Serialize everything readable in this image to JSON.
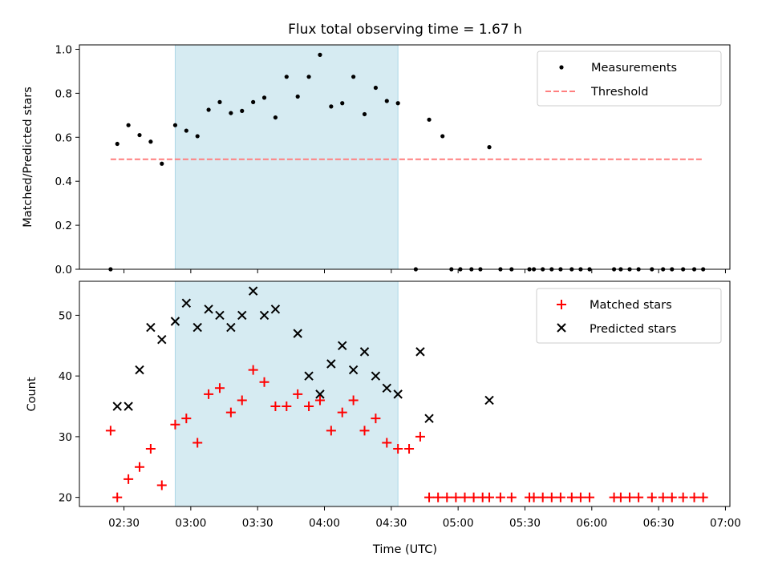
{
  "chart_data": [
    {
      "type": "scatter",
      "title": "Flux total observing time = 1.67 h",
      "xlabel": "",
      "ylabel": "Matched/Predicted stars",
      "xlim": [
        "02:10",
        "07:02"
      ],
      "ylim": [
        0,
        1.02
      ],
      "yticks": [
        0.0,
        0.2,
        0.4,
        0.6,
        0.8,
        1.0
      ],
      "shaded_span": [
        "02:53",
        "04:33"
      ],
      "legend_position": "top-right",
      "colors": {
        "measurements": "#000000",
        "threshold": "#ff7f7f",
        "shade": "#add8e6"
      },
      "series": [
        {
          "name": "Measurements",
          "style": "dot",
          "x": [
            "02:24",
            "02:27",
            "02:32",
            "02:37",
            "02:42",
            "02:47",
            "02:53",
            "02:58",
            "03:03",
            "03:08",
            "03:13",
            "03:18",
            "03:23",
            "03:28",
            "03:33",
            "03:38",
            "03:43",
            "03:48",
            "03:53",
            "03:58",
            "04:03",
            "04:08",
            "04:13",
            "04:18",
            "04:23",
            "04:28",
            "04:33",
            "04:41",
            "04:47",
            "04:53",
            "04:57",
            "05:01",
            "05:06",
            "05:10",
            "05:14",
            "05:19",
            "05:24",
            "05:32",
            "05:34",
            "05:38",
            "05:42",
            "05:46",
            "05:51",
            "05:55",
            "05:59",
            "06:10",
            "06:13",
            "06:17",
            "06:21",
            "06:27",
            "06:32",
            "06:36",
            "06:41",
            "06:46",
            "06:50"
          ],
          "y": [
            0.0,
            0.57,
            0.655,
            0.61,
            0.58,
            0.48,
            0.655,
            0.63,
            0.605,
            0.725,
            0.76,
            0.71,
            0.72,
            0.76,
            0.78,
            0.69,
            0.875,
            0.785,
            0.875,
            0.975,
            0.74,
            0.755,
            0.875,
            0.705,
            0.825,
            0.765,
            0.755,
            0.0,
            0.68,
            0.605,
            0.0,
            0.0,
            0.0,
            0.0,
            0.555,
            0.0,
            0.0,
            0.0,
            0.0,
            0.0,
            0.0,
            0.0,
            0.0,
            0.0,
            0.0,
            0.0,
            0.0,
            0.0,
            0.0,
            0.0,
            0.0,
            0.0,
            0.0,
            0.0,
            0.0
          ]
        },
        {
          "name": "Threshold",
          "style": "dashed-line",
          "x": [
            "02:24",
            "06:50"
          ],
          "y": [
            0.5,
            0.5
          ]
        }
      ]
    },
    {
      "type": "scatter",
      "title": "",
      "xlabel": "Time (UTC)",
      "ylabel": "Count",
      "xlim": [
        "02:10",
        "07:02"
      ],
      "ylim": [
        18.5,
        55.6
      ],
      "yticks": [
        20,
        30,
        40,
        50
      ],
      "xticks": [
        "02:30",
        "03:00",
        "03:30",
        "04:00",
        "04:30",
        "05:00",
        "05:30",
        "06:00",
        "06:30",
        "07:00"
      ],
      "shaded_span": [
        "02:53",
        "04:33"
      ],
      "legend_position": "top-right",
      "colors": {
        "matched": "#ff0000",
        "predicted": "#000000",
        "shade": "#add8e6"
      },
      "series": [
        {
          "name": "Matched stars",
          "marker": "plus",
          "x": [
            "02:24",
            "02:27",
            "02:32",
            "02:37",
            "02:42",
            "02:47",
            "02:53",
            "02:58",
            "03:03",
            "03:08",
            "03:13",
            "03:18",
            "03:23",
            "03:28",
            "03:33",
            "03:38",
            "03:43",
            "03:48",
            "03:53",
            "03:58",
            "04:03",
            "04:08",
            "04:13",
            "04:18",
            "04:23",
            "04:28",
            "04:33",
            "04:38",
            "04:43",
            "04:47",
            "04:51",
            "04:55",
            "04:59",
            "05:03",
            "05:07",
            "05:11",
            "05:14",
            "05:19",
            "05:24",
            "05:32",
            "05:34",
            "05:38",
            "05:42",
            "05:46",
            "05:51",
            "05:55",
            "05:59",
            "06:10",
            "06:13",
            "06:17",
            "06:21",
            "06:27",
            "06:32",
            "06:36",
            "06:41",
            "06:46",
            "06:50"
          ],
          "y": [
            31,
            20,
            23,
            25,
            28,
            22,
            32,
            33,
            29,
            37,
            38,
            34,
            36,
            41,
            39,
            35,
            35,
            37,
            35,
            36,
            31,
            34,
            36,
            31,
            33,
            29,
            28,
            28,
            30,
            20,
            20,
            20,
            20,
            20,
            20,
            20,
            20,
            20,
            20,
            20,
            20,
            20,
            20,
            20,
            20,
            20,
            20,
            20,
            20,
            20,
            20,
            20,
            20,
            20,
            20,
            20,
            20
          ]
        },
        {
          "name": "Predicted stars",
          "marker": "x",
          "x": [
            "02:27",
            "02:32",
            "02:37",
            "02:42",
            "02:47",
            "02:53",
            "02:58",
            "03:03",
            "03:08",
            "03:13",
            "03:18",
            "03:23",
            "03:28",
            "03:33",
            "03:38",
            "03:48",
            "03:53",
            "03:58",
            "04:03",
            "04:08",
            "04:13",
            "04:18",
            "04:23",
            "04:28",
            "04:33",
            "04:43",
            "04:47",
            "05:14"
          ],
          "y": [
            35,
            35,
            41,
            48,
            46,
            49,
            52,
            48,
            51,
            50,
            48,
            50,
            54,
            50,
            51,
            47,
            40,
            37,
            42,
            45,
            41,
            44,
            40,
            38,
            37,
            44,
            33,
            36
          ]
        }
      ]
    }
  ]
}
